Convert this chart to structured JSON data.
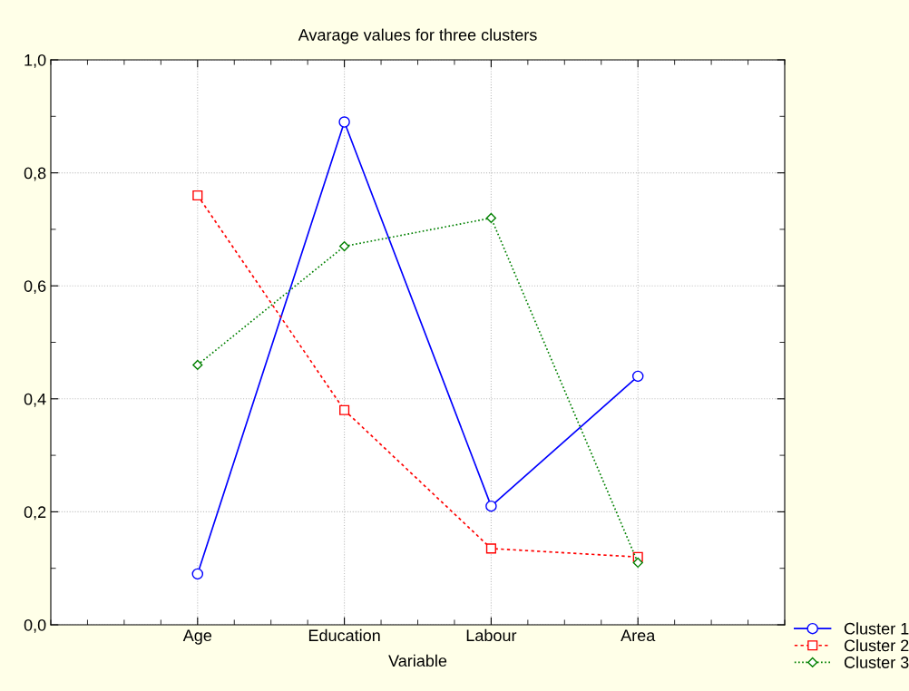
{
  "chart_data": {
    "type": "line",
    "title": "Avarage values for three clusters",
    "xlabel": "Variable",
    "categories": [
      "Age",
      "Education",
      "Labour",
      "Area"
    ],
    "series": [
      {
        "name": "Cluster 1",
        "color": "#0000ff",
        "values": [
          0.09,
          0.89,
          0.21,
          0.44
        ],
        "marker": "circle",
        "line_style": "solid"
      },
      {
        "name": "Cluster 2",
        "color": "#ff0000",
        "values": [
          0.76,
          0.38,
          0.135,
          0.12
        ],
        "marker": "square",
        "line_style": "dashed"
      },
      {
        "name": "Cluster 3",
        "color": "#008000",
        "values": [
          0.46,
          0.67,
          0.72,
          0.11
        ],
        "marker": "diamond",
        "line_style": "dotted"
      }
    ],
    "ylim": [
      0,
      1
    ],
    "yticks": [
      {
        "value": 0,
        "label": "0,0"
      },
      {
        "value": 0.2,
        "label": "0,2"
      },
      {
        "value": 0.4,
        "label": "0,4"
      },
      {
        "value": 0.6,
        "label": "0,6"
      },
      {
        "value": 0.8,
        "label": "0,8"
      },
      {
        "value": 1,
        "label": "1,0"
      }
    ],
    "grid": true,
    "legend": "bottom right"
  }
}
